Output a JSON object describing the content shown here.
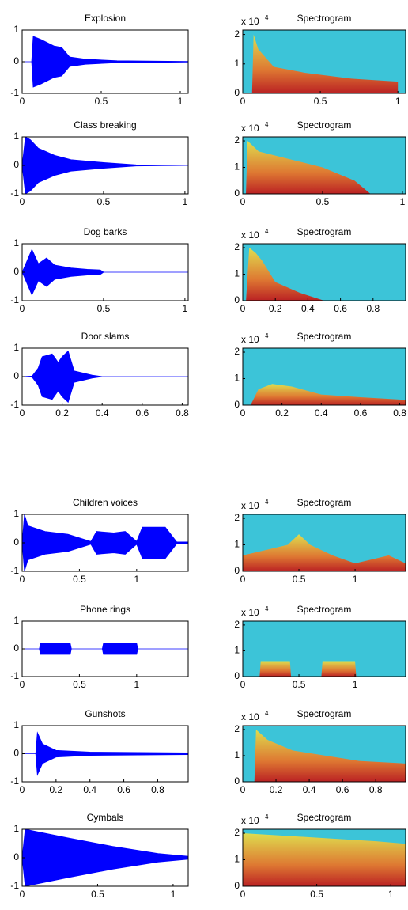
{
  "chart_data": [
    {
      "type": "waveform",
      "title": "Explosion",
      "color": "#0000ff",
      "xlim": [
        0,
        1.05
      ],
      "xticks": [
        0,
        0.5,
        1
      ],
      "ylim": [
        -1,
        1
      ],
      "yticks": [
        -1,
        0,
        1
      ],
      "x": [
        0,
        0.06,
        0.07,
        0.12,
        0.2,
        0.25,
        0.3,
        0.4,
        0.6,
        1.05
      ],
      "values": [
        0,
        0,
        0.8,
        0.7,
        0.5,
        0.45,
        0.15,
        0.08,
        0.03,
        0.01
      ]
    },
    {
      "type": "spectrogram",
      "title": "Spectrogram",
      "y_scale_label": "x 10",
      "y_scale_exponent": "4",
      "background": "#3cc4d8",
      "xlim": [
        0,
        1.05
      ],
      "xticks": [
        0,
        0.5,
        1
      ],
      "ylim": [
        0,
        2.15
      ],
      "yticks": [
        0,
        1,
        2
      ],
      "x": [
        0.06,
        0.07,
        0.1,
        0.2,
        0.4,
        0.7,
        1.0
      ],
      "values": [
        0,
        2,
        1.5,
        0.9,
        0.7,
        0.5,
        0.4
      ]
    },
    {
      "type": "waveform",
      "title": "Class breaking",
      "color": "#0000ff",
      "xlim": [
        0,
        1.02
      ],
      "xticks": [
        0,
        0.5,
        1
      ],
      "ylim": [
        -1,
        1
      ],
      "yticks": [
        -1,
        0,
        1
      ],
      "x": [
        0,
        0.02,
        0.05,
        0.1,
        0.2,
        0.3,
        0.5,
        0.7,
        1.02
      ],
      "values": [
        0,
        1,
        0.9,
        0.6,
        0.35,
        0.2,
        0.1,
        0.02,
        0
      ]
    },
    {
      "type": "spectrogram",
      "title": "Spectrogram",
      "y_scale_label": "x 10",
      "y_scale_exponent": "4",
      "background": "#3cc4d8",
      "xlim": [
        0,
        1.02
      ],
      "xticks": [
        0,
        0.5,
        1
      ],
      "ylim": [
        0,
        2.15
      ],
      "yticks": [
        0,
        1,
        2
      ],
      "x": [
        0.02,
        0.03,
        0.1,
        0.3,
        0.5,
        0.7,
        0.8
      ],
      "values": [
        0,
        2,
        1.6,
        1.3,
        1.0,
        0.5,
        0
      ]
    },
    {
      "type": "waveform",
      "title": "Dog barks",
      "color": "#0000ff",
      "xlim": [
        0,
        1.02
      ],
      "xticks": [
        0,
        0.5,
        1
      ],
      "ylim": [
        -1,
        1
      ],
      "yticks": [
        -1,
        0,
        1
      ],
      "x": [
        0,
        0.03,
        0.06,
        0.1,
        0.15,
        0.2,
        0.3,
        0.4,
        0.48,
        0.5,
        1.02
      ],
      "values": [
        0,
        0.4,
        0.8,
        0.3,
        0.5,
        0.25,
        0.15,
        0.1,
        0.08,
        0,
        0
      ]
    },
    {
      "type": "spectrogram",
      "title": "Spectrogram",
      "y_scale_label": "x 10",
      "y_scale_exponent": "4",
      "background": "#3cc4d8",
      "xlim": [
        0,
        1.0
      ],
      "xticks": [
        0,
        0.2,
        0.4,
        0.6,
        0.8
      ],
      "ylim": [
        0,
        2.15
      ],
      "yticks": [
        0,
        1,
        2
      ],
      "x": [
        0.02,
        0.04,
        0.08,
        0.12,
        0.2,
        0.35,
        0.5
      ],
      "values": [
        0,
        2,
        1.8,
        1.5,
        0.7,
        0.3,
        0
      ]
    },
    {
      "type": "waveform",
      "title": "Door slams",
      "color": "#0000ff",
      "xlim": [
        0,
        0.83
      ],
      "xticks": [
        0,
        0.2,
        0.4,
        0.6,
        0.8
      ],
      "ylim": [
        -1,
        1
      ],
      "yticks": [
        -1,
        0,
        1
      ],
      "x": [
        0,
        0.05,
        0.08,
        0.1,
        0.15,
        0.18,
        0.2,
        0.23,
        0.26,
        0.35,
        0.4,
        0.83
      ],
      "values": [
        0,
        0.02,
        0.3,
        0.7,
        0.8,
        0.5,
        0.7,
        0.9,
        0.2,
        0.05,
        0,
        0
      ]
    },
    {
      "type": "spectrogram",
      "title": "Spectrogram",
      "y_scale_label": "x 10",
      "y_scale_exponent": "4",
      "background": "#3cc4d8",
      "xlim": [
        0,
        0.83
      ],
      "xticks": [
        0,
        0.2,
        0.4,
        0.6,
        0.8
      ],
      "ylim": [
        0,
        2.15
      ],
      "yticks": [
        0,
        1,
        2
      ],
      "x": [
        0.04,
        0.08,
        0.15,
        0.25,
        0.4,
        0.6,
        0.83
      ],
      "values": [
        0,
        0.6,
        0.8,
        0.7,
        0.4,
        0.3,
        0.2
      ]
    },
    {
      "type": "waveform",
      "title": "Children voices",
      "color": "#0000ff",
      "xlim": [
        0,
        1.45
      ],
      "xticks": [
        0,
        0.5,
        1
      ],
      "ylim": [
        -1,
        1
      ],
      "yticks": [
        -1,
        0,
        1
      ],
      "x": [
        0,
        0.02,
        0.05,
        0.2,
        0.4,
        0.6,
        0.65,
        0.8,
        0.9,
        1.0,
        1.05,
        1.25,
        1.35,
        1.45
      ],
      "values": [
        0,
        1,
        0.6,
        0.4,
        0.3,
        0.05,
        0.4,
        0.35,
        0.4,
        0.05,
        0.55,
        0.55,
        0.03,
        0.03
      ]
    },
    {
      "type": "spectrogram",
      "title": "Spectrogram",
      "y_scale_label": "x 10",
      "y_scale_exponent": "4",
      "background": "#3cc4d8",
      "xlim": [
        0,
        1.45
      ],
      "xticks": [
        0,
        0.5,
        1
      ],
      "ylim": [
        0,
        2.15
      ],
      "yticks": [
        0,
        1,
        2
      ],
      "x": [
        0,
        0.2,
        0.4,
        0.5,
        0.6,
        0.8,
        1.0,
        1.3,
        1.45
      ],
      "values": [
        0.6,
        0.8,
        1.0,
        1.4,
        1.0,
        0.6,
        0.3,
        0.6,
        0.3
      ]
    },
    {
      "type": "waveform",
      "title": "Phone rings",
      "color": "#0000ff",
      "xlim": [
        0,
        1.45
      ],
      "xticks": [
        0,
        0.5,
        1
      ],
      "ylim": [
        -1,
        1
      ],
      "yticks": [
        -1,
        0,
        1
      ],
      "x": [
        0,
        0.15,
        0.16,
        0.42,
        0.43,
        0.7,
        0.71,
        1.0,
        1.01,
        1.45
      ],
      "values": [
        0,
        0,
        0.2,
        0.2,
        0,
        0,
        0.2,
        0.2,
        0,
        0
      ]
    },
    {
      "type": "spectrogram",
      "title": "Spectrogram",
      "y_scale_label": "x 10",
      "y_scale_exponent": "4",
      "background": "#3cc4d8",
      "xlim": [
        0,
        1.45
      ],
      "xticks": [
        0,
        0.5,
        1
      ],
      "ylim": [
        0,
        2.15
      ],
      "yticks": [
        0,
        1,
        2
      ],
      "x": [
        0.15,
        0.16,
        0.42,
        0.43,
        0.7,
        0.71,
        1.0,
        1.01
      ],
      "values": [
        0,
        0.6,
        0.6,
        0,
        0,
        0.6,
        0.6,
        0
      ]
    },
    {
      "type": "waveform",
      "title": "Gunshots",
      "color": "#0000ff",
      "xlim": [
        0,
        0.98
      ],
      "xticks": [
        0,
        0.2,
        0.4,
        0.6,
        0.8
      ],
      "ylim": [
        -1,
        1
      ],
      "yticks": [
        -1,
        0,
        1
      ],
      "x": [
        0,
        0.08,
        0.09,
        0.12,
        0.2,
        0.4,
        0.98
      ],
      "values": [
        0,
        0,
        0.75,
        0.35,
        0.12,
        0.06,
        0.03
      ]
    },
    {
      "type": "spectrogram",
      "title": "Spectrogram",
      "y_scale_label": "x 10",
      "y_scale_exponent": "4",
      "background": "#3cc4d8",
      "xlim": [
        0,
        0.98
      ],
      "xticks": [
        0,
        0.2,
        0.4,
        0.6,
        0.8
      ],
      "ylim": [
        0,
        2.15
      ],
      "yticks": [
        0,
        1,
        2
      ],
      "x": [
        0.07,
        0.08,
        0.15,
        0.3,
        0.5,
        0.7,
        0.98
      ],
      "values": [
        0,
        2,
        1.6,
        1.2,
        1.0,
        0.8,
        0.7
      ]
    },
    {
      "type": "waveform",
      "title": "Cymbals",
      "color": "#0000ff",
      "xlim": [
        0,
        1.1
      ],
      "xticks": [
        0,
        0.5,
        1
      ],
      "ylim": [
        -1,
        1
      ],
      "yticks": [
        -1,
        0,
        1
      ],
      "x": [
        0,
        0.02,
        0.3,
        0.6,
        0.9,
        1.1
      ],
      "values": [
        0,
        1,
        0.7,
        0.4,
        0.15,
        0.05
      ]
    },
    {
      "type": "spectrogram",
      "title": "Spectrogram",
      "y_scale_label": "x 10",
      "y_scale_exponent": "4",
      "background": "#3cc4d8",
      "xlim": [
        0,
        1.1
      ],
      "xticks": [
        0,
        0.5,
        1
      ],
      "ylim": [
        0,
        2.15
      ],
      "yticks": [
        0,
        1,
        2
      ],
      "x": [
        0,
        0.3,
        0.6,
        0.9,
        1.1
      ],
      "values": [
        2,
        1.9,
        1.8,
        1.7,
        1.6
      ]
    }
  ]
}
